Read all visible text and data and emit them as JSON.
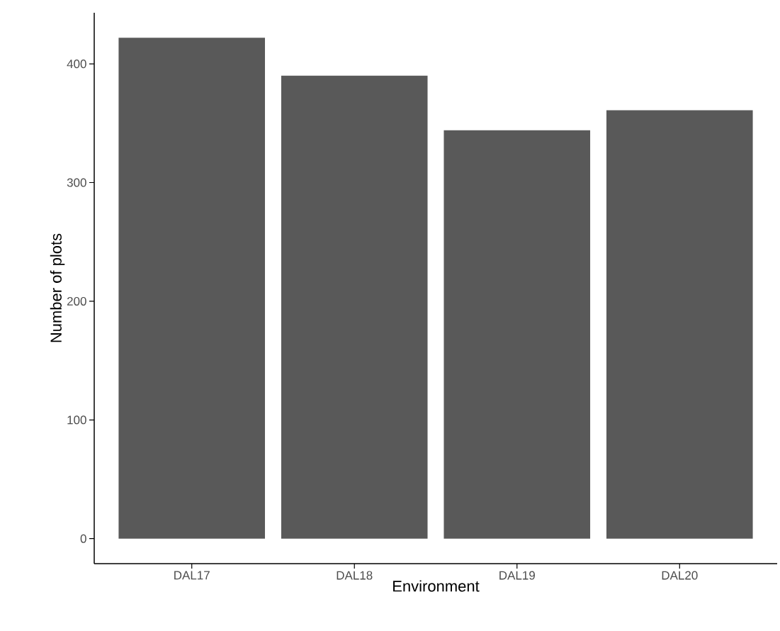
{
  "chart_data": {
    "type": "bar",
    "xlabel": "Environment",
    "ylabel": "Number of plots",
    "categories": [
      "DAL17",
      "DAL18",
      "DAL19",
      "DAL20"
    ],
    "values": [
      422,
      390,
      344,
      361
    ],
    "color": "#595959",
    "ylim": [
      -21.1,
      443.1
    ],
    "yticks": [
      0,
      100,
      200,
      300,
      400
    ],
    "grid": false
  }
}
